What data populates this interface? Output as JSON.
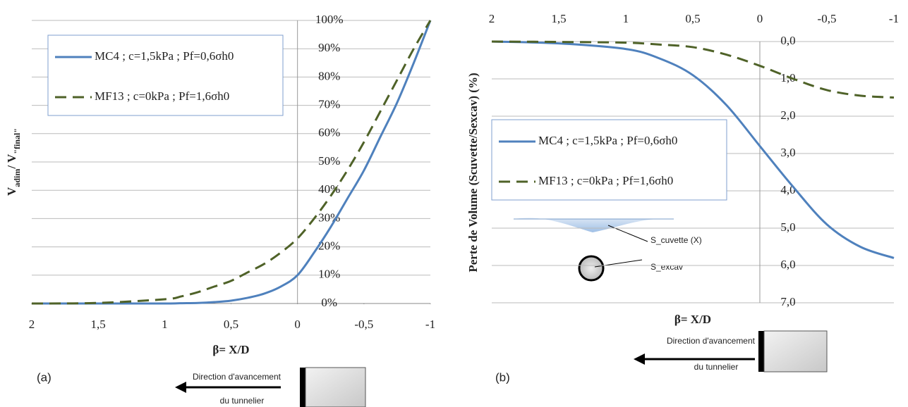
{
  "chart_data": [
    {
      "type": "line",
      "panel_label": "(a)",
      "x_label": "β= X/D",
      "ylabel_parts": [
        "V",
        "adim",
        "/ V",
        "\"final\""
      ],
      "x": [
        2,
        1.5,
        1,
        0.875,
        0.75,
        0.625,
        0.5,
        0.375,
        0.25,
        0.125,
        0,
        -0.125,
        -0.25,
        -0.375,
        -0.5,
        -0.625,
        -0.75,
        -0.875,
        -1
      ],
      "series": [
        {
          "name": "MC4 ; c=1,5kPa ; Pf=0,6σh0",
          "color": "#4f81bd",
          "dashed": false,
          "values": [
            0,
            0,
            0,
            0.1,
            0.2,
            0.5,
            1,
            2,
            3.5,
            6,
            10,
            18,
            27,
            37,
            47,
            59,
            71,
            85,
            100
          ]
        },
        {
          "name": "MF13 ; c=0kPa ; Pf=1,6σh0",
          "color": "#4f6228",
          "dashed": true,
          "values": [
            0,
            0.2,
            1.5,
            2.5,
            4,
            6,
            8,
            11,
            14,
            18,
            23,
            30,
            38,
            47,
            57,
            68,
            79,
            90,
            100
          ]
        }
      ],
      "xlim": [
        2,
        -1
      ],
      "xticks": [
        2,
        {
          "value": 1.5,
          "label": "1,5"
        },
        1,
        {
          "value": 0.5,
          "label": "0,5"
        },
        0,
        {
          "value": -0.5,
          "label": "-0,5"
        },
        -1
      ],
      "x_axis_position": "bottom",
      "ylim": [
        0,
        100
      ],
      "yticks": [
        {
          "value": 0,
          "label": "0%"
        },
        {
          "value": 10,
          "label": "10%"
        },
        {
          "value": 20,
          "label": "20%"
        },
        {
          "value": 30,
          "label": "30%"
        },
        {
          "value": 40,
          "label": "40%"
        },
        {
          "value": 50,
          "label": "50%"
        },
        {
          "value": 60,
          "label": "60%"
        },
        {
          "value": 70,
          "label": "70%"
        },
        {
          "value": 80,
          "label": "80%"
        },
        {
          "value": 90,
          "label": "90%"
        },
        {
          "value": 100,
          "label": "100%"
        }
      ],
      "grid": true,
      "legend_position": "upper left",
      "annotations": [
        "Direction d'avancement",
        "du tunnelier"
      ]
    },
    {
      "type": "line",
      "panel_label": "(b)",
      "x_label": "β= X/D",
      "y_label": "Perte de Volume (Scuvette/Sexcav) (%)",
      "x": [
        2,
        1.5,
        1,
        0.75,
        0.5,
        0.25,
        0,
        -0.25,
        -0.5,
        -0.75,
        -1
      ],
      "series": [
        {
          "name": "MC4 ; c=1,5kPa ; Pf=0,6σh0",
          "color": "#4f81bd",
          "dashed": false,
          "values": [
            0,
            0.05,
            0.2,
            0.45,
            0.9,
            1.7,
            2.8,
            3.9,
            4.9,
            5.5,
            5.8
          ]
        },
        {
          "name": "MF13 ; c=0kPa ; Pf=1,6σh0",
          "color": "#4f6228",
          "dashed": true,
          "values": [
            0,
            0.01,
            0.03,
            0.08,
            0.15,
            0.35,
            0.65,
            1.0,
            1.3,
            1.45,
            1.5
          ]
        }
      ],
      "xlim": [
        2,
        -1
      ],
      "xticks": [
        2,
        {
          "value": 1.5,
          "label": "1,5"
        },
        1,
        {
          "value": 0.5,
          "label": "0,5"
        },
        0,
        {
          "value": -0.5,
          "label": "-0,5"
        },
        -1
      ],
      "x_axis_position": "top",
      "ylim": [
        0,
        7
      ],
      "yticks": [
        {
          "value": 0,
          "label": "0,0"
        },
        {
          "value": 1,
          "label": "1,0"
        },
        {
          "value": 2,
          "label": "2,0"
        },
        {
          "value": 3,
          "label": "3,0"
        },
        {
          "value": 4,
          "label": "4,0"
        },
        {
          "value": 5,
          "label": "5,0"
        },
        {
          "value": 6,
          "label": "6,0"
        },
        {
          "value": 7,
          "label": "7,0"
        }
      ],
      "grid": true,
      "legend_position": "center left",
      "annotations": [
        "Direction d'avancement",
        "du tunnelier"
      ],
      "schematic_labels": [
        "S_cuvette (X)",
        "S_excav"
      ]
    }
  ]
}
